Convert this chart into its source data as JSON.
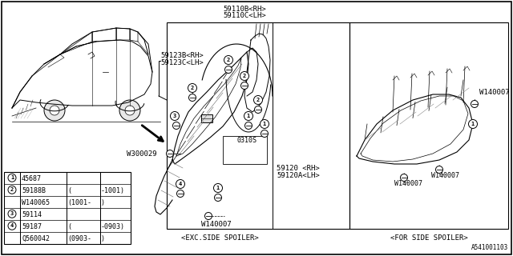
{
  "bg_color": "#ffffff",
  "text_color": "#000000",
  "diagram_number": "A541001103",
  "font_size": 6.5,
  "label_59110B": "59110B<RH>",
  "label_59110C": "59110C<LH>",
  "label_59123B": "59123B<RH>",
  "label_59123C": "59123C<LH>",
  "label_0310S": "0310S",
  "label_59120": "59120 <RH>",
  "label_59120A": "59120A<LH>",
  "label_W140007": "W140007",
  "label_W300029": "W300029",
  "label_exc": "<EXC.SIDE SPOILER>",
  "label_for": "<FOR SIDE SPOILER>",
  "parts_table": [
    [
      "1",
      "45687",
      "",
      ""
    ],
    [
      "2",
      "59188B",
      "(",
      "-1001)"
    ],
    [
      "",
      "W140065",
      "(1001-",
      ")"
    ],
    [
      "3",
      "59114",
      "",
      ""
    ],
    [
      "4",
      "59187",
      "(",
      "-0903)"
    ],
    [
      "",
      "Q560042",
      "(0903-",
      ")"
    ]
  ]
}
